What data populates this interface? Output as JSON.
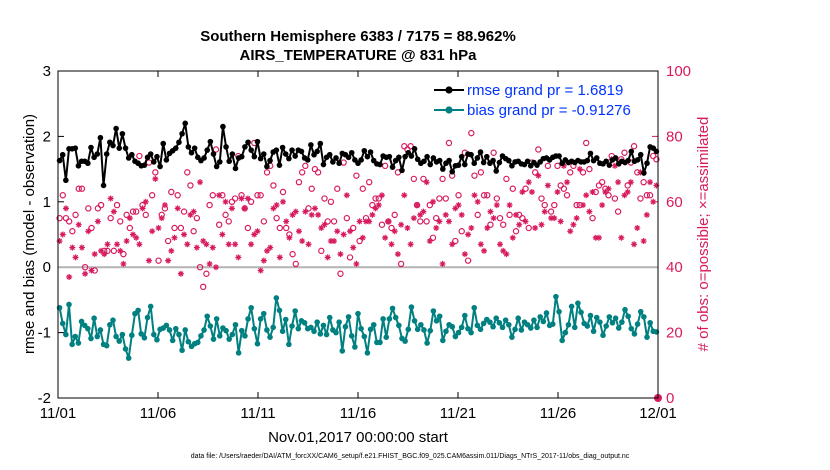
{
  "chart_data": {
    "type": "line",
    "title_line1": "Southern Hemisphere 6383 / 7175 = 88.962%",
    "title_line2": "AIRS_TEMPERATURE @ 831 hPa",
    "xlabel": "Nov.01,2017 00:00:00 start",
    "ylabel_left": "rmse and bias (model - observation)",
    "ylabel_right": "# of obs: o=possible; ×=assimilated",
    "footnote": "data file: /Users/raeder/DAI/ATM_forcXX/CAM6_setup/f.e21.FHIST_BGC.f09_025.CAM6assim.011/Diags_NTrS_2017-11/obs_diag_output.nc",
    "xlim": [
      0,
      30
    ],
    "ylim_left": [
      -2,
      3
    ],
    "ylim_right": [
      0,
      100
    ],
    "x_tick_labels": [
      "11/01",
      "11/06",
      "11/11",
      "11/16",
      "11/21",
      "11/26",
      "12/01"
    ],
    "x_tick_values": [
      0,
      5,
      10,
      15,
      20,
      25,
      30
    ],
    "y_left_ticks": [
      -2,
      -1,
      0,
      1,
      2,
      3
    ],
    "y_right_ticks": [
      0,
      20,
      40,
      60,
      80,
      100
    ],
    "colors": {
      "rmse": "#000000",
      "bias": "#008080",
      "obs": "#d81b60",
      "zero_line": "#b4b4b4",
      "legend_text": "#0033ff",
      "axis_right": "#d81b60"
    },
    "series": [
      {
        "name": "rmse grand pr = 1.6819",
        "axis": "left",
        "values": [
          1.63,
          1.72,
          1.33,
          1.81,
          1.81,
          1.82,
          1.55,
          1.62,
          1.62,
          1.59,
          1.83,
          1.68,
          1.73,
          1.98,
          1.25,
          1.73,
          1.91,
          1.86,
          2.12,
          1.82,
          2.04,
          1.82,
          1.67,
          1.72,
          1.62,
          1.59,
          1.55,
          1.56,
          1.68,
          1.73,
          1.61,
          1.69,
          1.54,
          1.89,
          1.64,
          1.74,
          1.78,
          1.82,
          1.91,
          2.04,
          2.2,
          1.84,
          1.75,
          1.82,
          1.68,
          1.63,
          1.67,
          1.79,
          1.92,
          1.73,
          1.54,
          1.61,
          2.15,
          1.84,
          1.62,
          1.73,
          1.51,
          1.67,
          1.69,
          1.84,
          1.91,
          1.79,
          1.69,
          1.92,
          1.66,
          1.73,
          1.54,
          1.63,
          1.76,
          1.79,
          1.56,
          1.83,
          1.73,
          1.66,
          1.79,
          1.7,
          1.79,
          1.77,
          1.67,
          1.64,
          1.87,
          1.72,
          1.77,
          1.89,
          1.57,
          1.68,
          1.72,
          1.61,
          1.67,
          1.59,
          1.74,
          1.72,
          1.68,
          1.75,
          1.64,
          1.59,
          1.64,
          1.78,
          1.69,
          1.76,
          1.63,
          1.58,
          1.57,
          1.7,
          1.68,
          1.69,
          1.53,
          1.63,
          1.68,
          1.48,
          1.69,
          1.75,
          1.7,
          1.81,
          1.65,
          1.59,
          1.62,
          1.69,
          1.57,
          1.67,
          1.61,
          1.63,
          1.5,
          1.59,
          1.63,
          1.46,
          1.55,
          1.56,
          1.69,
          1.57,
          1.73,
          1.72,
          1.59,
          1.67,
          1.76,
          1.6,
          1.69,
          1.59,
          1.63,
          1.47,
          1.6,
          1.7,
          1.66,
          1.63,
          1.55,
          1.61,
          1.62,
          1.58,
          1.57,
          1.62,
          1.55,
          1.6,
          1.56,
          1.61,
          1.66,
          1.67,
          1.64,
          1.68,
          1.7,
          1.7,
          1.59,
          1.64,
          1.6,
          1.62,
          1.6,
          1.63,
          1.61,
          1.61,
          1.63,
          1.74,
          1.63,
          1.67,
          1.59,
          1.58,
          1.62,
          1.56,
          1.64,
          1.67,
          1.58,
          1.62,
          1.6,
          1.63,
          1.77,
          1.62,
          1.64,
          1.72,
          1.44,
          1.59,
          1.84,
          1.82,
          1.77
        ]
      },
      {
        "name": "bias grand pr = -0.91276",
        "axis": "left",
        "values": [
          -0.62,
          -0.86,
          -1.03,
          -0.57,
          -1.18,
          -1.06,
          -1.16,
          -0.83,
          -0.89,
          -0.94,
          -1.09,
          -0.78,
          -1.06,
          -0.96,
          -1.18,
          -1.2,
          -0.88,
          -0.81,
          -1.06,
          -1.13,
          -1.03,
          -1.25,
          -1.39,
          -1.04,
          -0.71,
          -0.66,
          -1.02,
          -1.08,
          -0.77,
          -0.6,
          -1.03,
          -1.11,
          -0.95,
          -0.93,
          -0.89,
          -0.96,
          -1.12,
          -0.94,
          -1.03,
          -1.27,
          -0.96,
          -1.14,
          -1.21,
          -1.17,
          -1.15,
          -1.05,
          -0.96,
          -0.75,
          -0.9,
          -1.1,
          -0.79,
          -1.05,
          -0.93,
          -0.97,
          -1.1,
          -1.03,
          -0.88,
          -1.31,
          -0.97,
          -1.05,
          -0.79,
          -0.62,
          -0.94,
          -1.17,
          -0.79,
          -0.71,
          -0.96,
          -1.07,
          -0.92,
          -0.47,
          -0.66,
          -0.98,
          -0.8,
          -1.18,
          -0.9,
          -0.67,
          -0.94,
          -0.82,
          -0.85,
          -0.94,
          -0.92,
          -0.98,
          -0.84,
          -1.02,
          -0.89,
          -1.03,
          -0.77,
          -0.96,
          -1.0,
          -0.84,
          -1.28,
          -0.91,
          -0.76,
          -1.05,
          -1.22,
          -0.71,
          -0.94,
          -1.06,
          -1.31,
          -0.95,
          -0.88,
          -1.15,
          -1.15,
          -0.79,
          -1.07,
          -0.79,
          -0.63,
          -0.77,
          -0.89,
          -1.09,
          -1.13,
          -0.95,
          -0.61,
          -0.82,
          -0.95,
          -0.88,
          -0.96,
          -1.16,
          -0.97,
          -0.67,
          -0.82,
          -0.75,
          -1.12,
          -0.98,
          -0.88,
          -0.91,
          -1.06,
          -1.0,
          -0.92,
          -0.74,
          -0.94,
          -1.0,
          -0.62,
          -0.89,
          -0.95,
          -0.86,
          -0.8,
          -0.84,
          -0.91,
          -0.78,
          -0.85,
          -0.92,
          -0.81,
          -0.88,
          -1.07,
          -0.95,
          -0.78,
          -0.96,
          -0.84,
          -0.88,
          -0.93,
          -0.81,
          -0.92,
          -0.76,
          -0.83,
          -0.7,
          -0.89,
          -0.87,
          -0.45,
          -0.68,
          -1.12,
          -1.0,
          -0.88,
          -0.6,
          -0.92,
          -0.55,
          -0.69,
          -0.86,
          -0.9,
          -0.74,
          -0.98,
          -0.77,
          -0.84,
          -1.04,
          -0.9,
          -0.76,
          -0.85,
          -0.78,
          -0.93,
          -0.84,
          -0.65,
          -0.75,
          -0.94,
          -1.02,
          -0.87,
          -0.68,
          -0.76,
          -1.07,
          -0.85,
          -0.98,
          -0.99
        ]
      }
    ],
    "obs_possible": [
      55,
      62,
      55,
      54,
      51,
      56,
      64,
      64,
      40,
      58,
      52,
      39,
      58,
      59,
      45,
      45,
      55,
      45,
      59,
      54,
      44,
      56,
      52,
      57,
      57,
      74,
      59,
      56,
      72,
      62,
      69,
      42,
      56,
      58,
      48,
      63,
      52,
      62,
      52,
      57,
      69,
      65,
      51,
      55,
      40,
      34,
      38,
      59,
      62,
      76,
      53,
      62,
      56,
      54,
      60,
      61,
      74,
      62,
      58,
      52,
      60,
      78,
      62,
      62,
      54,
      69,
      71,
      65,
      55,
      52,
      63,
      52,
      50,
      44,
      41,
      66,
      69,
      71,
      58,
      64,
      70,
      69,
      45,
      61,
      54,
      60,
      54,
      64,
      38,
      72,
      55,
      43,
      52,
      68,
      48,
      64,
      55,
      66,
      59,
      61,
      61,
      53,
      71,
      54,
      52,
      56,
      69,
      41,
      77,
      76,
      77,
      67,
      59,
      54,
      67,
      54,
      59,
      49,
      55,
      61,
      67,
      61,
      78,
      68,
      48,
      62,
      51,
      75,
      42,
      81,
      68,
      56,
      69,
      62,
      62,
      53,
      75,
      61,
      55,
      53,
      67,
      56,
      64,
      51,
      56,
      55,
      64,
      52,
      72,
      69,
      76,
      61,
      59,
      71,
      57,
      59,
      71,
      65,
      64,
      62,
      69,
      71,
      59,
      59,
      69,
      78,
      70,
      55,
      63,
      65,
      66,
      64,
      62,
      74,
      61,
      57,
      73,
      75,
      65,
      72,
      77,
      69,
      61,
      66,
      62,
      62,
      74,
      73
    ],
    "obs_assimilated": [
      48,
      50,
      58,
      37,
      46,
      43,
      53,
      46,
      38,
      51,
      39,
      44,
      54,
      45,
      44,
      47,
      61,
      57,
      47,
      45,
      41,
      48,
      55,
      50,
      49,
      47,
      58,
      60,
      42,
      51,
      67,
      52,
      55,
      59,
      42,
      45,
      49,
      58,
      38,
      50,
      47,
      56,
      57,
      46,
      66,
      48,
      47,
      41,
      46,
      40,
      62,
      50,
      60,
      47,
      58,
      47,
      43,
      61,
      58,
      61,
      47,
      50,
      51,
      39,
      42,
      45,
      46,
      58,
      59,
      43,
      60,
      54,
      49,
      56,
      57,
      51,
      48,
      57,
      47,
      56,
      58,
      56,
      52,
      53,
      43,
      48,
      48,
      51,
      44,
      50,
      62,
      51,
      46,
      41,
      54,
      49,
      54,
      54,
      56,
      58,
      59,
      62,
      49,
      54,
      47,
      51,
      44,
      53,
      62,
      52,
      47,
      55,
      59,
      56,
      57,
      66,
      48,
      60,
      52,
      54,
      41,
      56,
      54,
      47,
      58,
      59,
      56,
      44,
      50,
      52,
      62,
      60,
      47,
      45,
      52,
      57,
      55,
      59,
      47,
      45,
      44,
      59,
      49,
      56,
      53,
      63,
      54,
      66,
      63,
      52,
      68,
      53,
      57,
      65,
      55,
      55,
      63,
      54,
      71,
      66,
      51,
      53,
      55,
      70,
      59,
      62,
      57,
      63,
      49,
      49,
      59,
      63,
      64,
      73,
      71,
      66,
      49,
      62,
      63,
      66,
      47,
      52,
      69,
      48,
      56,
      66,
      60,
      65
    ],
    "legend": [
      "rmse grand pr = 1.6819",
      "bias grand pr = -0.91276"
    ],
    "legend_location": "top-right",
    "grid": false
  }
}
